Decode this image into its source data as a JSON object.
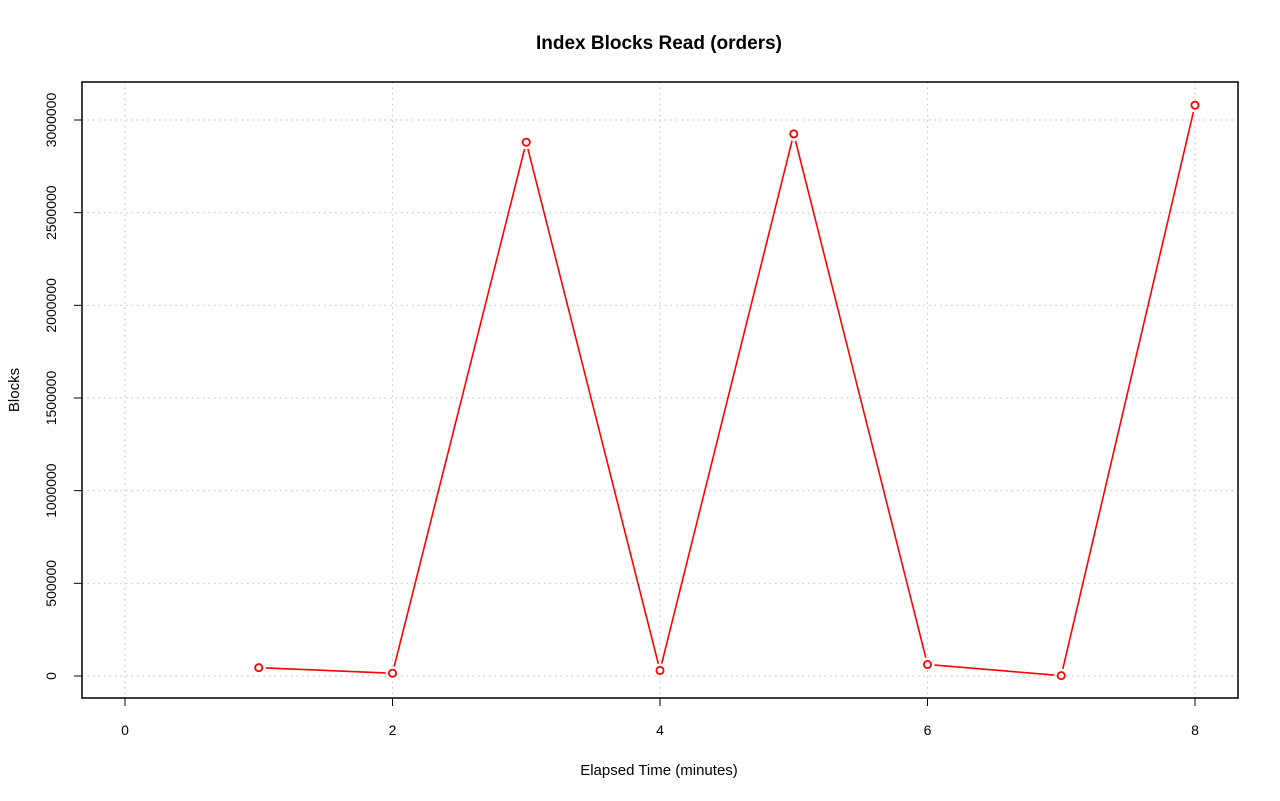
{
  "chart_data": {
    "type": "line",
    "title": "Index Blocks Read (orders)",
    "xlabel": "Elapsed Time (minutes)",
    "ylabel": "Blocks",
    "xlim": [
      0,
      8
    ],
    "ylim": [
      0,
      3000000
    ],
    "x_ticks": [
      0,
      2,
      4,
      6,
      8
    ],
    "y_ticks": [
      0,
      500000,
      1000000,
      1500000,
      2000000,
      2500000,
      3000000
    ],
    "grid": true,
    "series_color": "#ff0000",
    "series": [
      {
        "x": [
          1,
          2,
          3,
          4,
          5,
          6,
          7,
          8
        ],
        "values": [
          45000,
          15000,
          2880000,
          30000,
          2925000,
          62000,
          2000,
          3080000
        ]
      }
    ]
  }
}
